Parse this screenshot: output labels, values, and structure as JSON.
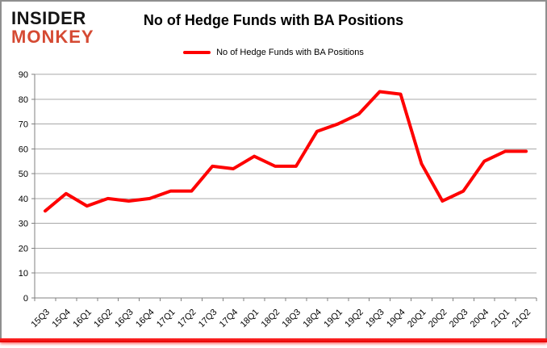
{
  "logo": {
    "line1": "INSIDER",
    "line2": "MONKEY"
  },
  "header": {
    "title": "No of Hedge Funds with BA Positions"
  },
  "legend": {
    "label": "No of Hedge Funds with BA Positions",
    "swatch_color": "#fe0000"
  },
  "colors": {
    "line": "#fe0000",
    "gridline": "#a8a8a8",
    "axis": "#808080",
    "tick": "#808080",
    "text": "#000000",
    "logo_insider": "#141414",
    "logo_monkey": "#d54a33",
    "frame_border": "#8f8f8f",
    "bottom_bar": "#f40000"
  },
  "chart_data": {
    "type": "line",
    "title": "No of Hedge Funds with BA Positions",
    "categories": [
      "15Q3",
      "15Q4",
      "16Q1",
      "16Q2",
      "16Q3",
      "16Q4",
      "17Q1",
      "17Q2",
      "17Q3",
      "17Q4",
      "18Q1",
      "18Q2",
      "18Q3",
      "18Q4",
      "19Q1",
      "19Q2",
      "19Q3",
      "19Q4",
      "20Q1",
      "20Q2",
      "20Q3",
      "20Q4",
      "21Q1",
      "21Q2"
    ],
    "series": [
      {
        "name": "No of Hedge Funds with BA Positions",
        "color": "#fe0000",
        "values": [
          35,
          42,
          37,
          40,
          39,
          40,
          43,
          43,
          53,
          52,
          57,
          53,
          53,
          67,
          70,
          74,
          83,
          82,
          54,
          39,
          43,
          55,
          59,
          59
        ]
      }
    ],
    "xlabel": "",
    "ylabel": "",
    "ylim": [
      0,
      90
    ],
    "ytick_step": 10,
    "grid": "horizontal",
    "legend_position": "top-center",
    "x_label_rotation": -45
  }
}
